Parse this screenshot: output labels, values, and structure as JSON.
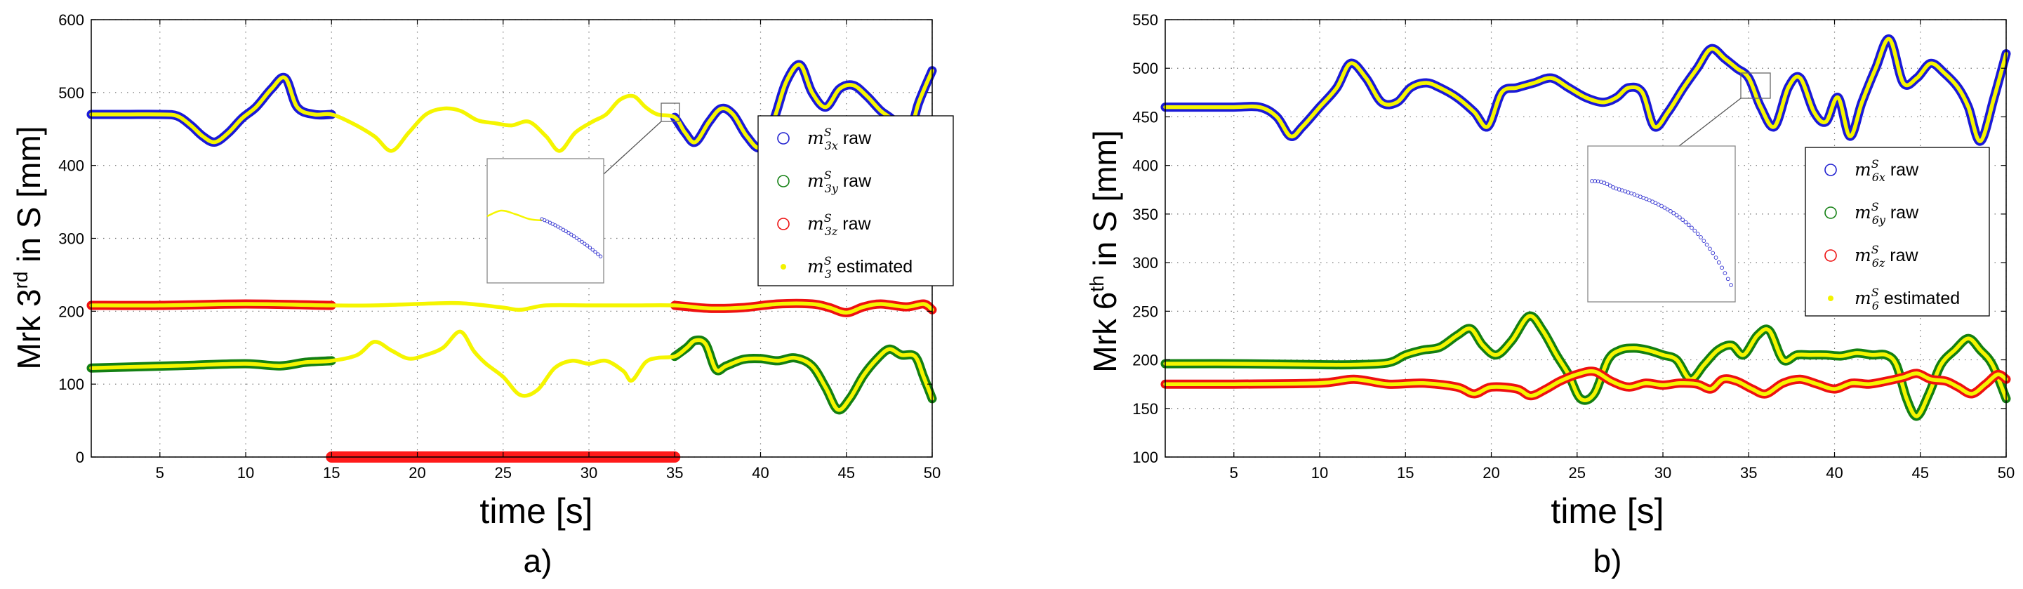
{
  "chart_data": [
    {
      "type": "line",
      "panel_label": "a)",
      "xlabel": "time [s]",
      "ylabel": {
        "prefix": "Mrk 3",
        "sup": "rd",
        "suffix": " in S [mm]"
      },
      "xlim": [
        1,
        50
      ],
      "ylim": [
        0,
        600
      ],
      "xticks": [
        5,
        10,
        15,
        20,
        25,
        30,
        35,
        40,
        45,
        50
      ],
      "yticks": [
        0,
        100,
        200,
        300,
        400,
        500,
        600
      ],
      "grid": true,
      "legend": {
        "position": "right",
        "entries": [
          {
            "sym": "m",
            "sub": "3x",
            "sup": "S",
            "text": " raw",
            "marker": "circle",
            "color": "#2020d0"
          },
          {
            "sym": "m",
            "sub": "3y",
            "sup": "S",
            "text": " raw",
            "marker": "circle",
            "color": "#138013"
          },
          {
            "sym": "m",
            "sub": "3z",
            "sup": "S",
            "text": " raw",
            "marker": "circle",
            "color": "#ee1111"
          },
          {
            "sym": "m",
            "sub": "3",
            "sup": "S",
            "text": " estimated",
            "marker": "dot",
            "color": "#f2f200"
          }
        ]
      },
      "occlusion": {
        "x_start": 15,
        "x_end": 35,
        "y": 0,
        "color": "#ff1a1a"
      },
      "series": [
        {
          "name": "m3x",
          "raw_color": "#1a1ad8",
          "raw_ranges": [
            [
              1,
              15
            ],
            [
              35,
              50
            ]
          ],
          "x": [
            1,
            3,
            5,
            6,
            6.8,
            7.5,
            8.2,
            9,
            9.8,
            10.6,
            11.5,
            12.3,
            13,
            14,
            15,
            16.2,
            17.5,
            18.5,
            19.5,
            20.5,
            21.5,
            22.5,
            23.5,
            24.5,
            25.5,
            26.5,
            27.5,
            28.3,
            29.2,
            30.2,
            31,
            31.8,
            32.6,
            33.3,
            34,
            35,
            35.6,
            36.2,
            37,
            37.7,
            38.4,
            39.2,
            40,
            40.8,
            41.5,
            42.3,
            43,
            43.8,
            44.6,
            45.4,
            46.2,
            47,
            47.8,
            48.5,
            49.2,
            50
          ],
          "y": [
            470,
            470,
            470,
            468,
            455,
            440,
            432,
            445,
            465,
            480,
            505,
            520,
            480,
            470,
            470,
            458,
            440,
            420,
            445,
            470,
            478,
            475,
            462,
            458,
            455,
            460,
            440,
            420,
            445,
            460,
            470,
            490,
            495,
            480,
            470,
            466,
            445,
            432,
            460,
            478,
            470,
            440,
            425,
            465,
            515,
            538,
            500,
            480,
            505,
            510,
            495,
            475,
            460,
            430,
            485,
            530
          ]
        },
        {
          "name": "m3z",
          "raw_color": "#ee1111",
          "raw_ranges": [
            [
              1,
              15
            ],
            [
              35,
              50
            ]
          ],
          "x": [
            1,
            5,
            10,
            15,
            17.5,
            20,
            22.5,
            25,
            26,
            27.5,
            30,
            32.5,
            35,
            37,
            39,
            41,
            43,
            44,
            45,
            46,
            47,
            48.5,
            49.5,
            50
          ],
          "y": [
            208,
            208,
            210,
            208,
            208,
            210,
            211,
            205,
            202,
            208,
            208,
            208,
            208,
            204,
            205,
            210,
            210,
            205,
            198,
            206,
            210,
            206,
            210,
            202
          ]
        },
        {
          "name": "m3y",
          "raw_color": "#138013",
          "raw_ranges": [
            [
              1,
              15
            ],
            [
              35,
              50
            ]
          ],
          "x": [
            1,
            4,
            7,
            10,
            12,
            13.5,
            15,
            16.5,
            17.5,
            18.5,
            19.5,
            20.5,
            21.5,
            22.5,
            23.3,
            24,
            25,
            26,
            27,
            28,
            29,
            30,
            31,
            32,
            32.5,
            33.3,
            34,
            35,
            35.7,
            36.2,
            36.8,
            37.4,
            38,
            39,
            40,
            41,
            42,
            43,
            43.8,
            44.5,
            45.2,
            46,
            46.8,
            47.5,
            48.2,
            49,
            49.5,
            50
          ],
          "y": [
            122,
            124,
            126,
            128,
            125,
            130,
            132,
            140,
            158,
            146,
            135,
            140,
            150,
            172,
            145,
            128,
            110,
            85,
            92,
            122,
            132,
            128,
            132,
            118,
            105,
            130,
            136,
            138,
            150,
            160,
            155,
            120,
            125,
            134,
            135,
            132,
            136,
            125,
            95,
            65,
            80,
            112,
            135,
            148,
            140,
            138,
            110,
            80
          ]
        }
      ]
    },
    {
      "type": "line",
      "panel_label": "b)",
      "xlabel": "time [s]",
      "ylabel": {
        "prefix": "Mrk 6",
        "sup": "th",
        "suffix": " in S [mm]"
      },
      "xlim": [
        1,
        50
      ],
      "ylim": [
        100,
        550
      ],
      "xticks": [
        5,
        10,
        15,
        20,
        25,
        30,
        35,
        40,
        45,
        50
      ],
      "yticks": [
        100,
        150,
        200,
        250,
        300,
        350,
        400,
        450,
        500,
        550
      ],
      "grid": true,
      "legend": {
        "position": "right",
        "entries": [
          {
            "sym": "m",
            "sub": "6x",
            "sup": "S",
            "text": " raw",
            "marker": "circle",
            "color": "#2020d0"
          },
          {
            "sym": "m",
            "sub": "6y",
            "sup": "S",
            "text": " raw",
            "marker": "circle",
            "color": "#138013"
          },
          {
            "sym": "m",
            "sub": "6z",
            "sup": "S",
            "text": " raw",
            "marker": "circle",
            "color": "#ee1111"
          },
          {
            "sym": "m",
            "sub": "6",
            "sup": "S",
            "text": " estimated",
            "marker": "dot",
            "color": "#f2f200"
          }
        ]
      },
      "series": [
        {
          "name": "m6x",
          "raw_color": "#1a1ad8",
          "raw_ranges": [
            [
              1,
              50
            ]
          ],
          "x": [
            1,
            3,
            5,
            6.5,
            7.5,
            8.3,
            9,
            10,
            11,
            11.8,
            12.7,
            13.6,
            14.5,
            15.3,
            16.2,
            17,
            18,
            19,
            19.8,
            20.6,
            21.5,
            22.5,
            23.5,
            24.5,
            25.5,
            26.5,
            27.3,
            28,
            28.8,
            29.5,
            30.3,
            31.2,
            32,
            32.8,
            33.6,
            34.3,
            35,
            35.7,
            36.5,
            37.3,
            38,
            38.8,
            39.5,
            40.2,
            40.9,
            41.6,
            42.4,
            43.2,
            44,
            44.8,
            45.6,
            46.4,
            47.2,
            47.8,
            48.5,
            49.3,
            50
          ],
          "y": [
            460,
            460,
            460,
            460,
            450,
            430,
            440,
            460,
            480,
            505,
            490,
            465,
            465,
            480,
            485,
            480,
            470,
            455,
            440,
            475,
            480,
            485,
            490,
            480,
            470,
            465,
            470,
            480,
            475,
            440,
            455,
            480,
            500,
            520,
            510,
            500,
            490,
            460,
            440,
            480,
            490,
            455,
            445,
            470,
            430,
            465,
            500,
            530,
            485,
            490,
            505,
            495,
            480,
            460,
            425,
            470,
            515
          ]
        },
        {
          "name": "m6y",
          "raw_color": "#138013",
          "raw_ranges": [
            [
              1,
              50
            ]
          ],
          "x": [
            1,
            5,
            10,
            12,
            14,
            15,
            16,
            17,
            18,
            18.8,
            19.5,
            20.3,
            21.2,
            22.2,
            23,
            23.8,
            24.5,
            25.2,
            26,
            26.8,
            27.5,
            28.3,
            29.1,
            30,
            30.8,
            31.6,
            32.4,
            33.2,
            34,
            34.7,
            35.5,
            36.2,
            37,
            37.8,
            38.6,
            39.5,
            40.4,
            41.3,
            42.2,
            43,
            43.6,
            44.2,
            44.8,
            45.5,
            46.2,
            47,
            47.8,
            48.5,
            49.2,
            50
          ],
          "y": [
            196,
            196,
            195,
            195,
            197,
            205,
            210,
            213,
            225,
            232,
            215,
            205,
            220,
            245,
            230,
            205,
            185,
            160,
            165,
            200,
            210,
            212,
            210,
            205,
            200,
            180,
            195,
            210,
            215,
            205,
            225,
            230,
            200,
            205,
            205,
            205,
            204,
            207,
            205,
            205,
            195,
            160,
            142,
            165,
            195,
            210,
            222,
            210,
            195,
            160
          ]
        },
        {
          "name": "m6z",
          "raw_color": "#ee1111",
          "raw_ranges": [
            [
              1,
              50
            ]
          ],
          "x": [
            1,
            5,
            10,
            12,
            14,
            16,
            18,
            19,
            20,
            21.5,
            22.3,
            23.2,
            24,
            25,
            26,
            27,
            28,
            29,
            30,
            31,
            32,
            32.8,
            33.5,
            34.3,
            35.2,
            36,
            37,
            38,
            39,
            40,
            41,
            42,
            43,
            44,
            44.8,
            45.6,
            46.5,
            47.2,
            48,
            48.8,
            49.5,
            50
          ],
          "y": [
            175,
            175,
            176,
            180,
            175,
            176,
            172,
            165,
            172,
            170,
            163,
            170,
            178,
            185,
            188,
            178,
            172,
            176,
            174,
            176,
            175,
            170,
            180,
            178,
            170,
            165,
            176,
            180,
            175,
            170,
            176,
            175,
            178,
            182,
            186,
            180,
            178,
            172,
            165,
            175,
            185,
            180
          ]
        }
      ]
    }
  ]
}
